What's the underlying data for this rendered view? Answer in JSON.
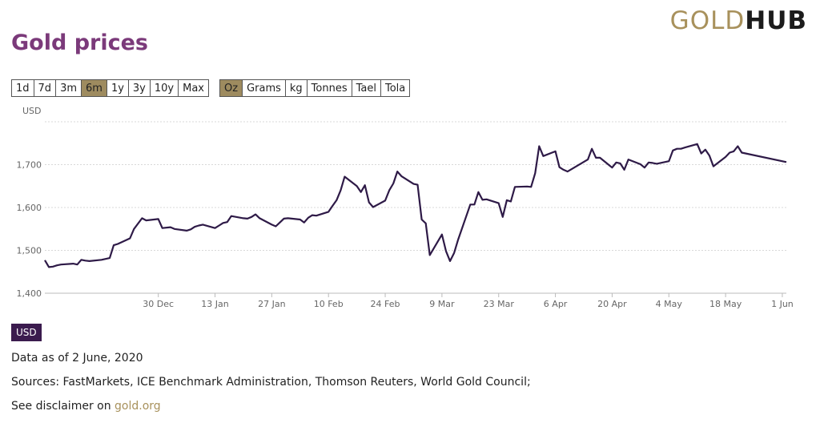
{
  "title": "Gold prices",
  "logo": {
    "part1": "GOLD",
    "part2": "HUB"
  },
  "range_buttons": [
    "1d",
    "7d",
    "3m",
    "6m",
    "1y",
    "3y",
    "10y",
    "Max"
  ],
  "range_active": "6m",
  "unit_buttons": [
    "Oz",
    "Grams",
    "kg",
    "Tonnes",
    "Tael",
    "Tola"
  ],
  "unit_active": "Oz",
  "currency_badge": "USD",
  "data_as_of": "Data as of 2 June, 2020",
  "sources": "Sources: FastMarkets, ICE Benchmark Administration, Thomson Reuters, World Gold Council;",
  "disclaimer_prefix": "See disclaimer on",
  "disclaimer_link": "gold.org",
  "colors": {
    "line": "#2e1a47",
    "accent": "#7b3a7a",
    "active_button": "#9e8b5f",
    "badge": "#3b1b4e"
  },
  "chart_data": {
    "type": "line",
    "ylabel": "USD",
    "ylim": [
      1400,
      1800
    ],
    "yticks": [
      1400,
      1500,
      1600,
      1700
    ],
    "ytick_labels": [
      "1,400",
      "1,500",
      "1,600",
      "1,700"
    ],
    "x_start": "2019-12-02",
    "x_end": "2020-06-02",
    "xticks": [
      {
        "date": "2019-12-30",
        "label": "30 Dec"
      },
      {
        "date": "2020-01-13",
        "label": "13 Jan"
      },
      {
        "date": "2020-01-27",
        "label": "27 Jan"
      },
      {
        "date": "2020-02-10",
        "label": "10 Feb"
      },
      {
        "date": "2020-02-24",
        "label": "24 Feb"
      },
      {
        "date": "2020-03-09",
        "label": "9 Mar"
      },
      {
        "date": "2020-03-23",
        "label": "23 Mar"
      },
      {
        "date": "2020-04-06",
        "label": "6 Apr"
      },
      {
        "date": "2020-04-20",
        "label": "20 Apr"
      },
      {
        "date": "2020-05-04",
        "label": "4 May"
      },
      {
        "date": "2020-05-18",
        "label": "18 May"
      },
      {
        "date": "2020-06-01",
        "label": "1 Jun"
      }
    ],
    "grid": true,
    "series": [
      {
        "points": [
          [
            "2019-12-02",
            1477
          ],
          [
            "2019-12-03",
            1461
          ],
          [
            "2019-12-04",
            1462
          ],
          [
            "2019-12-05",
            1465
          ],
          [
            "2019-12-06",
            1467
          ],
          [
            "2019-12-09",
            1469
          ],
          [
            "2019-12-10",
            1467
          ],
          [
            "2019-12-11",
            1478
          ],
          [
            "2019-12-12",
            1476
          ],
          [
            "2019-12-13",
            1475
          ],
          [
            "2019-12-16",
            1478
          ],
          [
            "2019-12-17",
            1480
          ],
          [
            "2019-12-18",
            1482
          ],
          [
            "2019-12-19",
            1512
          ],
          [
            "2019-12-20",
            1515
          ],
          [
            "2019-12-23",
            1528
          ],
          [
            "2019-12-24",
            1550
          ],
          [
            "2019-12-26",
            1575
          ],
          [
            "2019-12-27",
            1570
          ],
          [
            "2019-12-30",
            1573
          ],
          [
            "2019-12-31",
            1552
          ],
          [
            "2020-01-02",
            1554
          ],
          [
            "2020-01-03",
            1550
          ],
          [
            "2020-01-06",
            1546
          ],
          [
            "2020-01-07",
            1549
          ],
          [
            "2020-01-08",
            1555
          ],
          [
            "2020-01-09",
            1558
          ],
          [
            "2020-01-10",
            1560
          ],
          [
            "2020-01-13",
            1552
          ],
          [
            "2020-01-14",
            1558
          ],
          [
            "2020-01-15",
            1564
          ],
          [
            "2020-01-16",
            1566
          ],
          [
            "2020-01-17",
            1580
          ],
          [
            "2020-01-20",
            1575
          ],
          [
            "2020-01-21",
            1574
          ],
          [
            "2020-01-22",
            1578
          ],
          [
            "2020-01-23",
            1584
          ],
          [
            "2020-01-24",
            1575
          ],
          [
            "2020-01-27",
            1560
          ],
          [
            "2020-01-28",
            1556
          ],
          [
            "2020-01-29",
            1565
          ],
          [
            "2020-01-30",
            1574
          ],
          [
            "2020-01-31",
            1575
          ],
          [
            "2020-02-03",
            1572
          ],
          [
            "2020-02-04",
            1565
          ],
          [
            "2020-02-05",
            1576
          ],
          [
            "2020-02-06",
            1582
          ],
          [
            "2020-02-07",
            1581
          ],
          [
            "2020-02-10",
            1590
          ],
          [
            "2020-02-11",
            1604
          ],
          [
            "2020-02-12",
            1617
          ],
          [
            "2020-02-13",
            1640
          ],
          [
            "2020-02-14",
            1672
          ],
          [
            "2020-02-17",
            1650
          ],
          [
            "2020-02-18",
            1636
          ],
          [
            "2020-02-19",
            1652
          ],
          [
            "2020-02-20",
            1612
          ],
          [
            "2020-02-21",
            1601
          ],
          [
            "2020-02-24",
            1616
          ],
          [
            "2020-02-25",
            1640
          ],
          [
            "2020-02-26",
            1656
          ],
          [
            "2020-02-27",
            1684
          ],
          [
            "2020-02-28",
            1673
          ],
          [
            "2020-03-02",
            1655
          ],
          [
            "2020-03-03",
            1653
          ],
          [
            "2020-03-04",
            1572
          ],
          [
            "2020-03-05",
            1563
          ],
          [
            "2020-03-06",
            1489
          ],
          [
            "2020-03-09",
            1537
          ],
          [
            "2020-03-10",
            1498
          ],
          [
            "2020-03-11",
            1475
          ],
          [
            "2020-03-12",
            1494
          ],
          [
            "2020-03-13",
            1525
          ],
          [
            "2020-03-16",
            1607
          ],
          [
            "2020-03-17",
            1607
          ],
          [
            "2020-03-18",
            1636
          ],
          [
            "2020-03-19",
            1618
          ],
          [
            "2020-03-20",
            1619
          ],
          [
            "2020-03-23",
            1610
          ],
          [
            "2020-03-24",
            1578
          ],
          [
            "2020-03-25",
            1617
          ],
          [
            "2020-03-26",
            1614
          ],
          [
            "2020-03-27",
            1648
          ],
          [
            "2020-03-30",
            1649
          ],
          [
            "2020-03-31",
            1648
          ],
          [
            "2020-04-01",
            1680
          ],
          [
            "2020-04-02",
            1743
          ],
          [
            "2020-04-03",
            1720
          ],
          [
            "2020-04-06",
            1731
          ],
          [
            "2020-04-07",
            1694
          ],
          [
            "2020-04-08",
            1688
          ],
          [
            "2020-04-09",
            1684
          ],
          [
            "2020-04-14",
            1712
          ],
          [
            "2020-04-15",
            1737
          ],
          [
            "2020-04-16",
            1716
          ],
          [
            "2020-04-17",
            1716
          ],
          [
            "2020-04-20",
            1693
          ],
          [
            "2020-04-21",
            1705
          ],
          [
            "2020-04-22",
            1703
          ],
          [
            "2020-04-23",
            1688
          ],
          [
            "2020-04-24",
            1712
          ],
          [
            "2020-04-27",
            1701
          ],
          [
            "2020-04-28",
            1693
          ],
          [
            "2020-04-29",
            1705
          ],
          [
            "2020-04-30",
            1704
          ],
          [
            "2020-05-01",
            1702
          ],
          [
            "2020-05-04",
            1708
          ],
          [
            "2020-05-05",
            1733
          ],
          [
            "2020-05-06",
            1737
          ],
          [
            "2020-05-07",
            1737
          ],
          [
            "2020-05-08",
            1740
          ],
          [
            "2020-05-11",
            1748
          ],
          [
            "2020-05-12",
            1726
          ],
          [
            "2020-05-13",
            1735
          ],
          [
            "2020-05-14",
            1721
          ],
          [
            "2020-05-15",
            1696
          ],
          [
            "2020-05-18",
            1718
          ],
          [
            "2020-05-19",
            1728
          ],
          [
            "2020-05-20",
            1731
          ],
          [
            "2020-05-21",
            1743
          ],
          [
            "2020-05-22",
            1728
          ],
          [
            "2020-06-02",
            1706
          ]
        ]
      }
    ]
  }
}
